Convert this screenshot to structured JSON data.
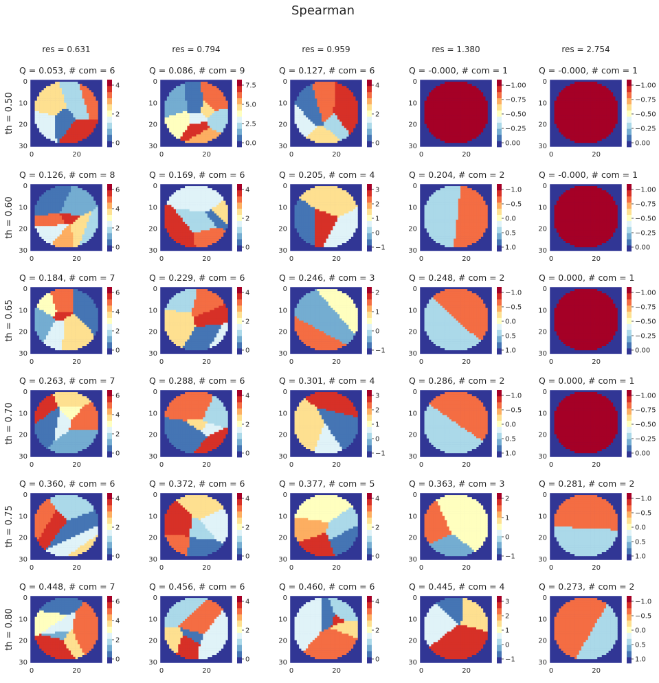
{
  "figure": {
    "title": "Spearman"
  },
  "colormap": [
    "#313695",
    "#4575b4",
    "#74add1",
    "#abd9e9",
    "#e0f3f8",
    "#ffffbf",
    "#fee090",
    "#fdae61",
    "#f46d43",
    "#d73027",
    "#a50026"
  ],
  "column_labels": [
    "res = 0.631",
    "res = 0.794",
    "res = 0.959",
    "res = 1.380",
    "res = 2.754"
  ],
  "row_labels": [
    "th = 0.50",
    "th = 0.60",
    "th = 0.65",
    "th = 0.70",
    "th = 0.75",
    "th = 0.80"
  ],
  "chart_data": {
    "type": "heatmap",
    "title": "Spearman",
    "x_ticks": [
      "0",
      "20"
    ],
    "y_ticks": [
      "0",
      "10",
      "20",
      "30"
    ],
    "panels": [
      [
        {
          "title": "Q = 0.053,  # com = 6",
          "cbar_ticks": [
            "0",
            "2",
            "4"
          ],
          "cbar_range": [
            -1,
            5
          ]
        },
        {
          "title": "Q = 0.086,  # com = 9",
          "cbar_ticks": [
            "0.0",
            "2.5",
            "5.0",
            "7.5"
          ],
          "cbar_range": [
            -1,
            8
          ]
        },
        {
          "title": "Q = 0.127,  # com = 6",
          "cbar_ticks": [
            "0",
            "2",
            "4"
          ],
          "cbar_range": [
            -1,
            5
          ]
        },
        {
          "title": "Q = -0.000,  # com = 1",
          "cbar_ticks": [
            "0.00",
            "−0.25",
            "−0.50",
            "−0.75",
            "−1.00"
          ],
          "cbar_range": [
            -1,
            0
          ]
        },
        {
          "title": "Q = -0.000,  # com = 1",
          "cbar_ticks": [
            "0.00",
            "−0.25",
            "−0.50",
            "−0.75",
            "−1.00"
          ],
          "cbar_range": [
            -1,
            0
          ]
        }
      ],
      [
        {
          "title": "Q = 0.126,  # com = 8",
          "cbar_ticks": [
            "0",
            "2",
            "4",
            "6"
          ],
          "cbar_range": [
            -1,
            7
          ]
        },
        {
          "title": "Q = 0.169,  # com = 6",
          "cbar_ticks": [
            "0",
            "2",
            "4"
          ],
          "cbar_range": [
            -1,
            5
          ]
        },
        {
          "title": "Q = 0.205,  # com = 4",
          "cbar_ticks": [
            "−1",
            "0",
            "1",
            "2",
            "3"
          ],
          "cbar_range": [
            -1,
            3
          ]
        },
        {
          "title": "Q = 0.204,  # com = 2",
          "cbar_ticks": [
            "1.0",
            "0.5",
            "0.0",
            "−0.5",
            "−1.0"
          ],
          "cbar_range": [
            -1,
            1
          ]
        },
        {
          "title": "Q = -0.000,  # com = 1",
          "cbar_ticks": [
            "0.00",
            "−0.25",
            "−0.50",
            "−0.75",
            "−1.00"
          ],
          "cbar_range": [
            -1,
            0
          ]
        }
      ],
      [
        {
          "title": "Q = 0.184,  # com = 7",
          "cbar_ticks": [
            "0",
            "2",
            "4",
            "6"
          ],
          "cbar_range": [
            -1,
            6
          ]
        },
        {
          "title": "Q = 0.229,  # com = 6",
          "cbar_ticks": [
            "0",
            "2",
            "4"
          ],
          "cbar_range": [
            -1,
            5
          ]
        },
        {
          "title": "Q = 0.246,  # com = 3",
          "cbar_ticks": [
            "−1",
            "0",
            "1",
            "2"
          ],
          "cbar_range": [
            -1,
            2
          ]
        },
        {
          "title": "Q = 0.248,  # com = 2",
          "cbar_ticks": [
            "1.0",
            "0.5",
            "0.0",
            "−0.5",
            "−1.0"
          ],
          "cbar_range": [
            -1,
            1
          ]
        },
        {
          "title": "Q = 0.000,  # com = 1",
          "cbar_ticks": [
            "0.00",
            "−0.25",
            "−0.50",
            "−0.75",
            "−1.00"
          ],
          "cbar_range": [
            -1,
            0
          ]
        }
      ],
      [
        {
          "title": "Q = 0.263,  # com = 7",
          "cbar_ticks": [
            "0",
            "2",
            "4",
            "6"
          ],
          "cbar_range": [
            -1,
            6
          ]
        },
        {
          "title": "Q = 0.288,  # com = 6",
          "cbar_ticks": [
            "0",
            "2",
            "4"
          ],
          "cbar_range": [
            -1,
            5
          ]
        },
        {
          "title": "Q = 0.301,  # com = 4",
          "cbar_ticks": [
            "−1",
            "0",
            "1",
            "2",
            "3"
          ],
          "cbar_range": [
            -1,
            3
          ]
        },
        {
          "title": "Q = 0.286,  # com = 2",
          "cbar_ticks": [
            "1.0",
            "0.5",
            "0.0",
            "−0.5",
            "−1.0"
          ],
          "cbar_range": [
            -1,
            1
          ]
        },
        {
          "title": "Q = 0.000,  # com = 1",
          "cbar_ticks": [
            "0.00",
            "−0.25",
            "−0.50",
            "−0.75",
            "−1.00"
          ],
          "cbar_range": [
            -1,
            0
          ]
        }
      ],
      [
        {
          "title": "Q = 0.360,  # com = 6",
          "cbar_ticks": [
            "0",
            "2",
            "4"
          ],
          "cbar_range": [
            -1,
            5
          ]
        },
        {
          "title": "Q = 0.372,  # com = 6",
          "cbar_ticks": [
            "0",
            "2",
            "4"
          ],
          "cbar_range": [
            -1,
            5
          ]
        },
        {
          "title": "Q = 0.377,  # com = 5",
          "cbar_ticks": [
            "0",
            "2",
            "4"
          ],
          "cbar_range": [
            -1,
            4
          ]
        },
        {
          "title": "Q = 0.363,  # com = 3",
          "cbar_ticks": [
            "−1",
            "0",
            "1",
            "2"
          ],
          "cbar_range": [
            -1,
            2
          ]
        },
        {
          "title": "Q = 0.281,  # com = 2",
          "cbar_ticks": [
            "1.0",
            "0.5",
            "0.0",
            "−0.5",
            "−1.0"
          ],
          "cbar_range": [
            -1,
            1
          ]
        }
      ],
      [
        {
          "title": "Q = 0.448,  # com = 7",
          "cbar_ticks": [
            "0",
            "2",
            "4",
            "6"
          ],
          "cbar_range": [
            -1,
            6
          ]
        },
        {
          "title": "Q = 0.456,  # com = 6",
          "cbar_ticks": [
            "0",
            "2",
            "4"
          ],
          "cbar_range": [
            -1,
            5
          ]
        },
        {
          "title": "Q = 0.460,  # com = 6",
          "cbar_ticks": [
            "0",
            "2",
            "4"
          ],
          "cbar_range": [
            -1,
            5
          ]
        },
        {
          "title": "Q = 0.445,  # com = 4",
          "cbar_ticks": [
            "−1",
            "0",
            "1",
            "2",
            "3"
          ],
          "cbar_range": [
            -1,
            3
          ]
        },
        {
          "title": "Q = 0.273,  # com = 2",
          "cbar_ticks": [
            "1.0",
            "0.5",
            "0.0",
            "−0.5",
            "−1.0"
          ],
          "cbar_range": [
            -1,
            1
          ]
        }
      ]
    ]
  }
}
